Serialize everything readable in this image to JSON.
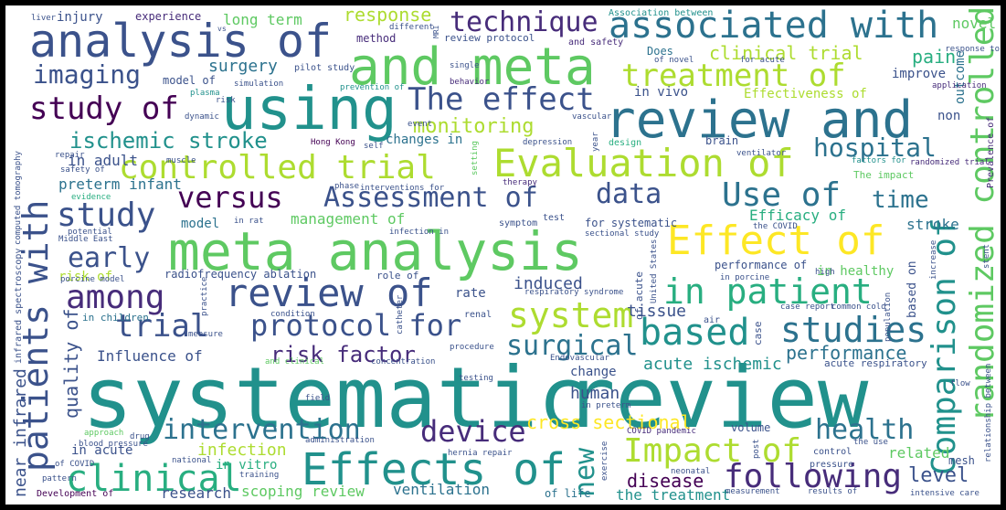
{
  "colors": {
    "background": "#ffffff",
    "frame": "#000000",
    "palette": [
      "#440154",
      "#472c7a",
      "#3b528b",
      "#2c728e",
      "#21918c",
      "#28ae80",
      "#5ec962",
      "#addc30",
      "#fde725"
    ]
  },
  "words": [
    {
      "text": "systematic",
      "color": "#21918c"
    },
    {
      "text": "review",
      "color": "#21918c"
    },
    {
      "text": "meta analysis",
      "color": "#5ec962"
    },
    {
      "text": "and meta",
      "color": "#5ec962"
    },
    {
      "text": "review and",
      "color": "#2c728e"
    },
    {
      "text": "using",
      "color": "#21918c"
    },
    {
      "text": "analysis of",
      "color": "#3b528b"
    },
    {
      "text": "associated with",
      "color": "#2c728e"
    },
    {
      "text": "Effect of",
      "color": "#fde725"
    },
    {
      "text": "Effects of",
      "color": "#21918c"
    },
    {
      "text": "Evaluation of",
      "color": "#addc30"
    },
    {
      "text": "patients with",
      "color": "#3b528b"
    },
    {
      "text": "randomized controlled",
      "color": "#5ec962"
    },
    {
      "text": "Comparison of",
      "color": "#21918c"
    },
    {
      "text": "review of",
      "color": "#3b528b"
    },
    {
      "text": "treatment of",
      "color": "#addc30"
    },
    {
      "text": "The effect",
      "color": "#3b528b"
    },
    {
      "text": "study of",
      "color": "#440154"
    },
    {
      "text": "controlled trial",
      "color": "#addc30"
    },
    {
      "text": "in patient",
      "color": "#28ae80"
    },
    {
      "text": "Impact of",
      "color": "#addc30"
    },
    {
      "text": "protocol for",
      "color": "#3b528b"
    },
    {
      "text": "clinical",
      "color": "#28ae80"
    },
    {
      "text": "following",
      "color": "#472c7a"
    },
    {
      "text": "system",
      "color": "#addc30"
    },
    {
      "text": "based",
      "color": "#21918c"
    },
    {
      "text": "studies",
      "color": "#2c728e"
    },
    {
      "text": "technique",
      "color": "#472c7a"
    },
    {
      "text": "among",
      "color": "#472c7a"
    },
    {
      "text": "versus",
      "color": "#440154"
    },
    {
      "text": "Use of",
      "color": "#2c728e"
    },
    {
      "text": "Assessment of",
      "color": "#3b528b"
    },
    {
      "text": "intervention",
      "color": "#2c728e"
    },
    {
      "text": "device",
      "color": "#472c7a"
    },
    {
      "text": "study",
      "color": "#3b528b"
    },
    {
      "text": "trial",
      "color": "#3b528b"
    },
    {
      "text": "surgical",
      "color": "#2c728e"
    },
    {
      "text": "imaging",
      "color": "#3b528b"
    },
    {
      "text": "hospital",
      "color": "#2c728e"
    },
    {
      "text": "early",
      "color": "#3b528b"
    },
    {
      "text": "health",
      "color": "#2c728e"
    },
    {
      "text": "new",
      "color": "#21918c"
    },
    {
      "text": "data",
      "color": "#3b528b"
    },
    {
      "text": "time",
      "color": "#2c728e"
    },
    {
      "text": "ischemic stroke",
      "color": "#21918c"
    },
    {
      "text": "risk factor",
      "color": "#472c7a"
    },
    {
      "text": "performance",
      "color": "#2c728e"
    },
    {
      "text": "clinical trial",
      "color": "#addc30"
    },
    {
      "text": "monitoring",
      "color": "#addc30"
    },
    {
      "text": "response",
      "color": "#addc30"
    },
    {
      "text": "quality of",
      "color": "#3b528b"
    },
    {
      "text": "cross sectional",
      "color": "#fde725"
    },
    {
      "text": "level",
      "color": "#3b528b"
    },
    {
      "text": "disease",
      "color": "#440154"
    },
    {
      "text": "pain",
      "color": "#28ae80"
    },
    {
      "text": "surgery",
      "color": "#2c728e"
    },
    {
      "text": "near infrared",
      "color": "#3b528b"
    },
    {
      "text": "infection",
      "color": "#addc30"
    },
    {
      "text": "acute ischemic",
      "color": "#21918c"
    },
    {
      "text": "management of",
      "color": "#5ec962"
    },
    {
      "text": "tissue",
      "color": "#3b528b"
    },
    {
      "text": "Efficacy of",
      "color": "#28ae80"
    },
    {
      "text": "research",
      "color": "#3b528b"
    },
    {
      "text": "ventilation",
      "color": "#2c728e"
    },
    {
      "text": "scoping review",
      "color": "#5ec962"
    },
    {
      "text": "the treatment",
      "color": "#21918c"
    },
    {
      "text": "human",
      "color": "#3b528b"
    },
    {
      "text": "stroke",
      "color": "#2c728e"
    },
    {
      "text": "induced",
      "color": "#3b528b"
    },
    {
      "text": "model",
      "color": "#2c728e"
    },
    {
      "text": "related",
      "color": "#5ec962"
    },
    {
      "text": "novel",
      "color": "#5ec962"
    },
    {
      "text": "preterm infant",
      "color": "#2c728e"
    },
    {
      "text": "in adult",
      "color": "#3b528b"
    },
    {
      "text": "long term",
      "color": "#5ec962"
    },
    {
      "text": "injury",
      "color": "#3b528b"
    },
    {
      "text": "experience",
      "color": "#472c7a"
    },
    {
      "text": "Influence of",
      "color": "#3b528b"
    },
    {
      "text": "in acute",
      "color": "#3b528b"
    },
    {
      "text": "in vitro",
      "color": "#28ae80"
    },
    {
      "text": "in vivo",
      "color": "#3b528b"
    },
    {
      "text": "changes in",
      "color": "#2c728e"
    },
    {
      "text": "in children",
      "color": "#2c728e"
    },
    {
      "text": "rate",
      "color": "#3b528b"
    },
    {
      "text": "change",
      "color": "#3b528b"
    },
    {
      "text": "volume",
      "color": "#3b528b"
    },
    {
      "text": "brain",
      "color": "#3b528b"
    },
    {
      "text": "method",
      "color": "#472c7a"
    },
    {
      "text": "risk of",
      "color": "#addc30"
    },
    {
      "text": "outcome",
      "color": "#2c728e"
    },
    {
      "text": "Effectiveness of",
      "color": "#addc30"
    },
    {
      "text": "improve",
      "color": "#3b528b"
    },
    {
      "text": "in healthy",
      "color": "#5ec962"
    },
    {
      "text": "performance of",
      "color": "#3b528b"
    },
    {
      "text": "model of",
      "color": "#3b528b"
    },
    {
      "text": "radiofrequency ablation",
      "color": "#3b528b"
    },
    {
      "text": "for systematic",
      "color": "#3b528b"
    },
    {
      "text": "role of",
      "color": "#3b528b"
    },
    {
      "text": "based on",
      "color": "#3b528b"
    },
    {
      "text": "of life",
      "color": "#2c728e"
    },
    {
      "text": "non",
      "color": "#3b528b"
    },
    {
      "text": "mesh",
      "color": "#3b528b"
    },
    {
      "text": "Development of",
      "color": "#440154"
    },
    {
      "text": "Association between",
      "color": "#21918c"
    },
    {
      "text": "review protocol",
      "color": "#3b528b"
    },
    {
      "text": "and safety",
      "color": "#472c7a"
    },
    {
      "text": "Does",
      "color": "#2c728e"
    },
    {
      "text": "of novel",
      "color": "#3b528b"
    },
    {
      "text": "for acute",
      "color": "#3b528b"
    },
    {
      "text": "application",
      "color": "#472c7a"
    },
    {
      "text": "pilot study",
      "color": "#3b528b"
    },
    {
      "text": "simulation",
      "color": "#3b528b"
    },
    {
      "text": "prevention of",
      "color": "#21918c"
    },
    {
      "text": "behavior",
      "color": "#472c7a"
    },
    {
      "text": "risk",
      "color": "#3b528b"
    },
    {
      "text": "plasma",
      "color": "#21918c"
    },
    {
      "text": "dynamic",
      "color": "#3b528b"
    },
    {
      "text": "Hong Kong",
      "color": "#440154"
    },
    {
      "text": "self",
      "color": "#3b528b"
    },
    {
      "text": "vascular",
      "color": "#3b528b"
    },
    {
      "text": "event",
      "color": "#3b528b"
    },
    {
      "text": "depression",
      "color": "#3b528b"
    },
    {
      "text": "design",
      "color": "#28ae80"
    },
    {
      "text": "ventilator",
      "color": "#3b528b"
    },
    {
      "text": "factors for",
      "color": "#21918c"
    },
    {
      "text": "randomized trial",
      "color": "#472c7a"
    },
    {
      "text": "The impact",
      "color": "#5ec962"
    },
    {
      "text": "Prevalence of",
      "color": "#472c7a"
    },
    {
      "text": "repair",
      "color": "#3b528b"
    },
    {
      "text": "safety of",
      "color": "#3b528b"
    },
    {
      "text": "evidence",
      "color": "#28ae80"
    },
    {
      "text": "phase",
      "color": "#3b528b"
    },
    {
      "text": "interventions for",
      "color": "#3b528b"
    },
    {
      "text": "therapy",
      "color": "#472c7a"
    },
    {
      "text": "in rat",
      "color": "#3b528b"
    },
    {
      "text": "symptom",
      "color": "#3b528b"
    },
    {
      "text": "test",
      "color": "#3b528b"
    },
    {
      "text": "infection in",
      "color": "#3b528b"
    },
    {
      "text": "sectional study",
      "color": "#3b528b"
    },
    {
      "text": "the COVID",
      "color": "#3b528b"
    },
    {
      "text": "Middle East",
      "color": "#3b528b"
    },
    {
      "text": "potential",
      "color": "#3b528b"
    },
    {
      "text": "porcine model",
      "color": "#3b528b"
    },
    {
      "text": "in porcine",
      "color": "#3b528b"
    },
    {
      "text": "high",
      "color": "#3b528b"
    },
    {
      "text": "respiratory syndrome",
      "color": "#3b528b"
    },
    {
      "text": "condition",
      "color": "#3b528b"
    },
    {
      "text": "catheter",
      "color": "#3b528b"
    },
    {
      "text": "renal",
      "color": "#3b528b"
    },
    {
      "text": "procedure",
      "color": "#3b528b"
    },
    {
      "text": "measure",
      "color": "#3b528b"
    },
    {
      "text": "and clinical",
      "color": "#5ec962"
    },
    {
      "text": "concentration",
      "color": "#3b528b"
    },
    {
      "text": "case report",
      "color": "#3b528b"
    },
    {
      "text": "common cold",
      "color": "#3b528b"
    },
    {
      "text": "population",
      "color": "#3b528b"
    },
    {
      "text": "air",
      "color": "#3b528b"
    },
    {
      "text": "case",
      "color": "#3b528b"
    },
    {
      "text": "acute respiratory",
      "color": "#3b528b"
    },
    {
      "text": "Endovascular",
      "color": "#3b528b"
    },
    {
      "text": "testing",
      "color": "#3b528b"
    },
    {
      "text": "field",
      "color": "#3b528b"
    },
    {
      "text": "in preterm",
      "color": "#3b528b"
    },
    {
      "text": "drug",
      "color": "#3b528b"
    },
    {
      "text": "approach",
      "color": "#5ec962"
    },
    {
      "text": "blood pressure",
      "color": "#3b528b"
    },
    {
      "text": "administration",
      "color": "#3b528b"
    },
    {
      "text": "COVID pandemic",
      "color": "#472c7a"
    },
    {
      "text": "hernia repair",
      "color": "#3b528b"
    },
    {
      "text": "the use",
      "color": "#3b528b"
    },
    {
      "text": "control",
      "color": "#3b528b"
    },
    {
      "text": "pressure",
      "color": "#3b528b"
    },
    {
      "text": "of COVID",
      "color": "#3b528b"
    },
    {
      "text": "pattern",
      "color": "#3b528b"
    },
    {
      "text": "national",
      "color": "#3b528b"
    },
    {
      "text": "training",
      "color": "#3b528b"
    },
    {
      "text": "exercise",
      "color": "#3b528b"
    },
    {
      "text": "neonatal",
      "color": "#3b528b"
    },
    {
      "text": "measurement",
      "color": "#3b528b"
    },
    {
      "text": "results of",
      "color": "#3b528b"
    },
    {
      "text": "intensive care",
      "color": "#3b528b"
    },
    {
      "text": "liver",
      "color": "#3b528b"
    },
    {
      "text": "different",
      "color": "#3b528b"
    },
    {
      "text": "single",
      "color": "#3b528b"
    },
    {
      "text": "response to",
      "color": "#3b528b"
    },
    {
      "text": "muscle",
      "color": "#3b528b"
    },
    {
      "text": "flow",
      "color": "#3b528b"
    },
    {
      "text": "stent",
      "color": "#3b528b"
    },
    {
      "text": "increase",
      "color": "#3b528b"
    },
    {
      "text": "of acute",
      "color": "#3b528b"
    },
    {
      "text": "United States",
      "color": "#3b528b"
    },
    {
      "text": "relationship between",
      "color": "#3b528b"
    },
    {
      "text": "infrared spectroscopy",
      "color": "#3b528b"
    },
    {
      "text": "computed tomography",
      "color": "#3b528b"
    },
    {
      "text": "practice",
      "color": "#3b528b"
    },
    {
      "text": "setting",
      "color": "#5ec962"
    },
    {
      "text": "year",
      "color": "#3b528b"
    },
    {
      "text": "post",
      "color": "#3b528b"
    },
    {
      "text": "vs",
      "color": "#3b528b"
    },
    {
      "text": "MRI",
      "color": "#3b528b"
    }
  ]
}
